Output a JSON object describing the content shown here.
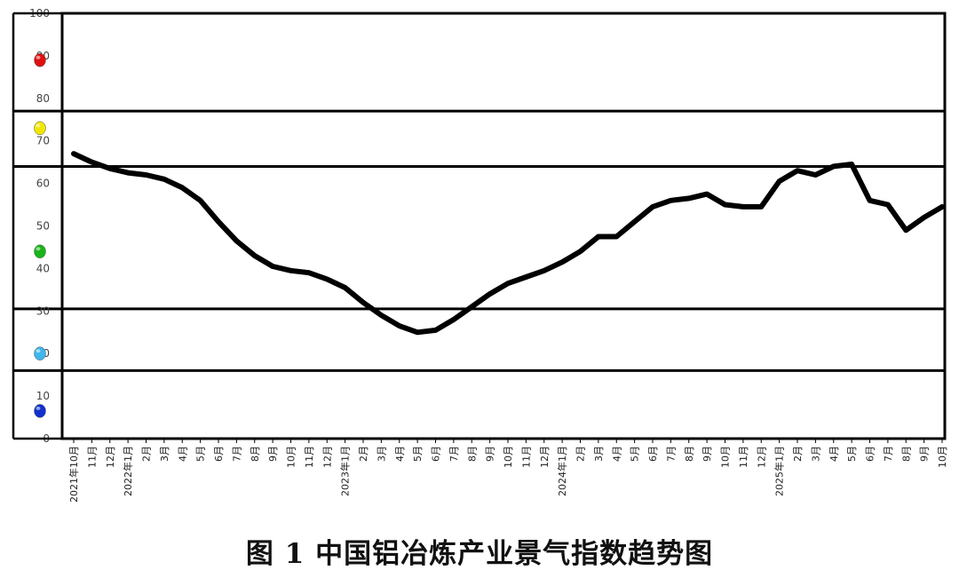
{
  "caption": "图 1  中国铝冶炼产业景气指数趋势图",
  "chart_data": {
    "type": "line",
    "title": "",
    "xlabel": "",
    "ylabel": "",
    "ylim": [
      0,
      100
    ],
    "y_ticks": [
      "0",
      "10",
      "20",
      "30",
      "40",
      "50",
      "60",
      "70",
      "80",
      "90",
      "100"
    ],
    "zone_boundaries": [
      16,
      30.5,
      64,
      77
    ],
    "signal_lights": [
      {
        "name": "red-light",
        "color": "#e01010",
        "value": 89
      },
      {
        "name": "yellow-light",
        "color": "#f2e600",
        "value": 73
      },
      {
        "name": "green-light",
        "color": "#18b418",
        "value": 44
      },
      {
        "name": "light-blue-light",
        "color": "#3fb6ee",
        "value": 20
      },
      {
        "name": "blue-light",
        "color": "#1030d0",
        "value": 6.5
      }
    ],
    "categories": [
      "2021年10月",
      "11月",
      "12月",
      "2022年1月",
      "2月",
      "3月",
      "4月",
      "5月",
      "6月",
      "7月",
      "8月",
      "9月",
      "10月",
      "11月",
      "12月",
      "2023年1月",
      "2月",
      "3月",
      "4月",
      "5月",
      "6月",
      "7月",
      "8月",
      "9月",
      "10月",
      "11月",
      "12月",
      "2024年1月",
      "2月",
      "3月",
      "4月",
      "5月",
      "6月",
      "7月",
      "8月",
      "9月",
      "10月",
      "11月",
      "12月",
      "2025年1月",
      "2月",
      "3月",
      "4月",
      "5月",
      "6月",
      "7月",
      "8月",
      "9月",
      "10月"
    ],
    "series": [
      {
        "values": [
          67,
          65,
          63.5,
          62.5,
          62,
          61,
          59,
          56,
          51,
          46.5,
          43,
          40.5,
          39.5,
          39,
          37.5,
          35.5,
          32,
          29,
          26.5,
          25,
          25.5,
          28,
          31,
          34,
          36.5,
          38,
          39.5,
          41.5,
          44,
          47.5,
          47.5,
          51,
          54.5,
          56,
          56.5,
          57.5,
          55,
          54.5,
          54.5,
          60.5,
          63,
          62,
          64,
          64.5,
          56,
          55,
          49,
          52,
          54.5
        ]
      }
    ]
  }
}
